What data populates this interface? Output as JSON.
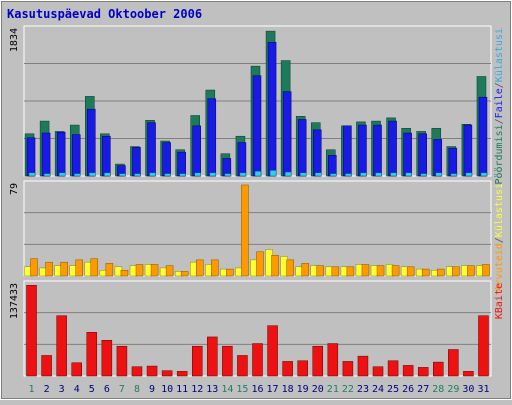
{
  "title": "Kasutuspäevad Oktoober 2006",
  "colors": {
    "background": "#c0c0c0",
    "title": "#0000cc",
    "gridline": "#808080",
    "visits": "#1d7a5a",
    "pages": "#1a1ae6",
    "hits": "#33aadd",
    "files": "#30d0f0",
    "computers": "#ff9900",
    "robots": "#ffff33",
    "bytes": "#ee1111",
    "weekend_day": "#208060",
    "weekday": "#000080"
  },
  "chart_data": [
    {
      "type": "bar",
      "name": "hits-panel",
      "axis_max_label": "1834",
      "ylim": [
        0,
        1834
      ],
      "legend": [
        {
          "label": "Pöördumisi",
          "color": "#1d7a5a"
        },
        {
          "label": "/",
          "color": "#555555"
        },
        {
          "label": "Faile",
          "color": "#1a1ae6"
        },
        {
          "label": "/",
          "color": "#555555"
        },
        {
          "label": "Külastusi",
          "color": "#33aadd"
        }
      ],
      "categories": [
        "1",
        "2",
        "3",
        "4",
        "5",
        "6",
        "7",
        "8",
        "9",
        "10",
        "11",
        "12",
        "13",
        "14",
        "15",
        "16",
        "17",
        "18",
        "19",
        "20",
        "21",
        "22",
        "23",
        "24",
        "25",
        "26",
        "27",
        "28",
        "29",
        "30",
        "31"
      ],
      "series": [
        {
          "name": "Pöördumisi",
          "values": [
            530,
            690,
            560,
            640,
            1000,
            530,
            150,
            370,
            700,
            440,
            330,
            760,
            1080,
            280,
            500,
            1380,
            1820,
            1450,
            750,
            670,
            330,
            630,
            680,
            690,
            730,
            600,
            560,
            600,
            370,
            650,
            1250
          ]
        },
        {
          "name": "Faile",
          "values": [
            480,
            540,
            550,
            520,
            840,
            500,
            130,
            360,
            670,
            420,
            300,
            630,
            970,
            220,
            420,
            1260,
            1680,
            1060,
            710,
            580,
            260,
            630,
            640,
            640,
            690,
            540,
            530,
            460,
            350,
            640,
            990
          ]
        },
        {
          "name": "Külastusi",
          "values": [
            40,
            30,
            40,
            30,
            40,
            40,
            30,
            30,
            40,
            30,
            30,
            40,
            40,
            30,
            40,
            60,
            70,
            50,
            40,
            40,
            30,
            30,
            40,
            40,
            40,
            40,
            30,
            40,
            30,
            40,
            40
          ]
        }
      ]
    },
    {
      "type": "bar",
      "name": "visitors-panel",
      "axis_max_label": "79",
      "ylim": [
        0,
        79
      ],
      "legend": [
        {
          "label": "Arvuteid",
          "color": "#ff9900"
        },
        {
          "label": "/",
          "color": "#555555"
        },
        {
          "label": "Külastusi",
          "color": "#ffff33"
        }
      ],
      "series": [
        {
          "name": "Arvuteid",
          "values": [
            15,
            12,
            12,
            14,
            15,
            11,
            5,
            10,
            10,
            9,
            4,
            14,
            14,
            6,
            79,
            21,
            18,
            14,
            11,
            9,
            8,
            8,
            10,
            9,
            9,
            8,
            6,
            6,
            8,
            9,
            10
          ]
        },
        {
          "name": "Külastusi",
          "values": [
            8,
            7,
            9,
            9,
            12,
            5,
            8,
            9,
            10,
            7,
            4,
            12,
            10,
            6,
            7,
            14,
            23,
            17,
            8,
            9,
            8,
            8,
            10,
            9,
            10,
            8,
            6,
            5,
            8,
            9,
            9
          ]
        }
      ]
    },
    {
      "type": "bar",
      "name": "bytes-panel",
      "axis_max_label": "137433",
      "ylim": [
        0,
        137433
      ],
      "legend": [
        {
          "label": "KBaite",
          "color": "#ee1111"
        }
      ],
      "series": [
        {
          "name": "KBaite",
          "values": [
            137000,
            31000,
            91000,
            20000,
            66000,
            54000,
            45000,
            14000,
            15000,
            8000,
            7000,
            45000,
            59000,
            45000,
            31000,
            49000,
            76000,
            22000,
            23000,
            45000,
            49000,
            22000,
            30000,
            14000,
            23000,
            16000,
            13000,
            21000,
            40000,
            7000,
            91000
          ]
        }
      ]
    }
  ],
  "day_colors": {
    "weekend_days": [
      "1",
      "7",
      "8",
      "14",
      "15",
      "21",
      "22",
      "28",
      "29"
    ]
  }
}
